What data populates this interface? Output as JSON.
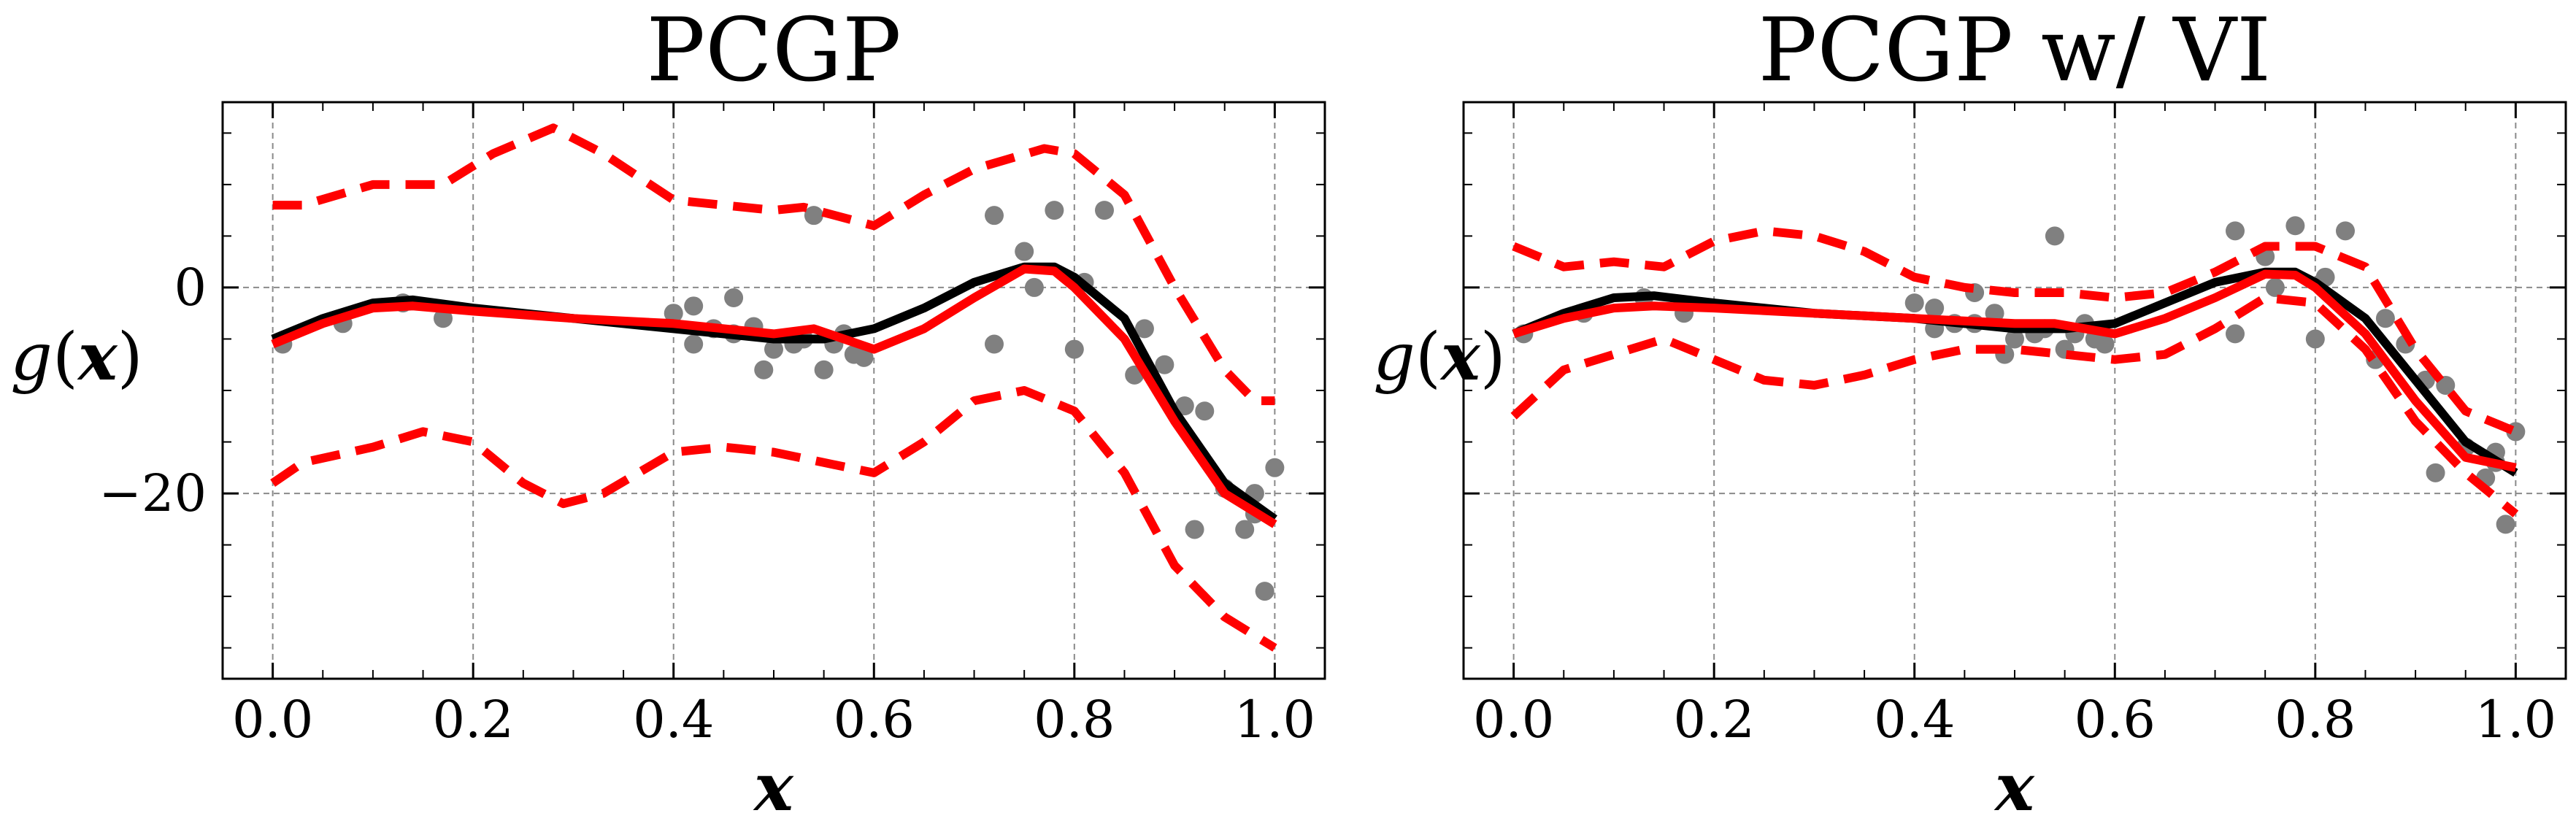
{
  "chart_data": [
    {
      "type": "line",
      "title": "PCGP",
      "xlabel": "x",
      "ylabel": "g(x)",
      "xlim": [
        -0.05,
        1.05
      ],
      "ylim": [
        -38,
        18
      ],
      "xticks": [
        0.0,
        0.2,
        0.4,
        0.6,
        0.8,
        1.0
      ],
      "xtick_labels": [
        "0.0",
        "0.2",
        "0.4",
        "0.6",
        "0.8",
        "1.0"
      ],
      "yticks": [
        0,
        -20
      ],
      "ytick_labels": [
        "0",
        "−20"
      ],
      "show_yticklabels": true,
      "grid": true,
      "series": [
        {
          "kind": "scatter",
          "color": "#808080",
          "x": [
            0.01,
            0.07,
            0.13,
            0.17,
            0.4,
            0.42,
            0.42,
            0.44,
            0.46,
            0.46,
            0.48,
            0.49,
            0.5,
            0.52,
            0.53,
            0.54,
            0.55,
            0.56,
            0.57,
            0.58,
            0.59,
            0.72,
            0.72,
            0.75,
            0.76,
            0.78,
            0.8,
            0.81,
            0.83,
            0.86,
            0.87,
            0.89,
            0.91,
            0.92,
            0.93,
            0.95,
            0.97,
            0.98,
            0.99,
            1.0,
            0.98
          ],
          "y": [
            -5.5,
            -3.5,
            -1.5,
            -3,
            -2.5,
            -1.8,
            -5.5,
            -4,
            -1,
            -4.5,
            -3.8,
            -8,
            -6,
            -5.5,
            -5,
            7,
            -8,
            -5.5,
            -4.5,
            -6.5,
            -6.8,
            7,
            -5.5,
            3.5,
            0,
            7.5,
            -6,
            0.5,
            7.5,
            -8.5,
            -4,
            -7.5,
            -11.5,
            -23.5,
            -12,
            -19.5,
            -23.5,
            -20,
            -29.5,
            -17.5,
            -22
          ]
        },
        {
          "kind": "line",
          "color": "#000000",
          "dash": "solid",
          "x": [
            0.0,
            0.05,
            0.1,
            0.14,
            0.2,
            0.3,
            0.4,
            0.5,
            0.55,
            0.6,
            0.65,
            0.7,
            0.75,
            0.78,
            0.8,
            0.85,
            0.9,
            0.95,
            1.0
          ],
          "y": [
            -5,
            -3,
            -1.5,
            -1.2,
            -2,
            -3,
            -4,
            -5,
            -5,
            -4,
            -2,
            0.5,
            2,
            2,
            1,
            -3,
            -12,
            -19,
            -22.5
          ]
        },
        {
          "kind": "line",
          "color": "#ff0000",
          "dash": "solid",
          "x": [
            0.0,
            0.05,
            0.1,
            0.14,
            0.2,
            0.3,
            0.4,
            0.5,
            0.54,
            0.6,
            0.65,
            0.7,
            0.75,
            0.78,
            0.8,
            0.85,
            0.9,
            0.95,
            1.0
          ],
          "y": [
            -5.5,
            -3.5,
            -2,
            -1.8,
            -2.3,
            -3,
            -3.5,
            -4.5,
            -4,
            -6,
            -4,
            -1,
            1.8,
            1.6,
            0,
            -5,
            -13,
            -20,
            -23
          ]
        },
        {
          "kind": "line",
          "color": "#ff0000",
          "dash": "dashed",
          "x": [
            0.0,
            0.03,
            0.1,
            0.17,
            0.22,
            0.28,
            0.33,
            0.4,
            0.45,
            0.5,
            0.53,
            0.6,
            0.65,
            0.7,
            0.77,
            0.8,
            0.85,
            0.9,
            0.95,
            0.98,
            1.0
          ],
          "y": [
            8,
            8,
            10,
            10,
            13,
            15.5,
            13,
            8.5,
            8,
            7.5,
            7.8,
            6,
            9,
            11.5,
            13.5,
            13,
            9,
            0,
            -8,
            -11,
            -11
          ]
        },
        {
          "kind": "line",
          "color": "#ff0000",
          "dash": "dashed",
          "x": [
            0.0,
            0.03,
            0.1,
            0.15,
            0.2,
            0.25,
            0.29,
            0.33,
            0.4,
            0.45,
            0.5,
            0.55,
            0.6,
            0.65,
            0.7,
            0.75,
            0.8,
            0.85,
            0.9,
            0.95,
            1.0
          ],
          "y": [
            -19,
            -17,
            -15.5,
            -14,
            -15,
            -19,
            -21,
            -20,
            -16,
            -15.5,
            -16,
            -17,
            -18,
            -15,
            -11,
            -10,
            -12,
            -18,
            -27,
            -32,
            -35
          ]
        }
      ]
    },
    {
      "type": "line",
      "title": "PCGP w/ VI",
      "xlabel": "x",
      "ylabel": "g(x)",
      "xlim": [
        -0.05,
        1.05
      ],
      "ylim": [
        -38,
        18
      ],
      "xticks": [
        0.0,
        0.2,
        0.4,
        0.6,
        0.8,
        1.0
      ],
      "xtick_labels": [
        "0.0",
        "0.2",
        "0.4",
        "0.6",
        "0.8",
        "1.0"
      ],
      "yticks": [
        0,
        -20
      ],
      "ytick_labels": [
        "",
        ""
      ],
      "show_yticklabels": false,
      "grid": true,
      "series": [
        {
          "kind": "scatter",
          "color": "#808080",
          "x": [
            0.01,
            0.07,
            0.13,
            0.17,
            0.4,
            0.42,
            0.42,
            0.44,
            0.46,
            0.46,
            0.48,
            0.49,
            0.5,
            0.52,
            0.53,
            0.54,
            0.55,
            0.56,
            0.57,
            0.58,
            0.59,
            0.72,
            0.72,
            0.75,
            0.76,
            0.78,
            0.8,
            0.81,
            0.83,
            0.86,
            0.87,
            0.89,
            0.91,
            0.92,
            0.93,
            0.95,
            0.97,
            0.98,
            0.99,
            1.0,
            0.98
          ],
          "y": [
            -4.5,
            -2.5,
            -1,
            -2.5,
            -1.5,
            -2,
            -4,
            -3.5,
            -0.5,
            -3.5,
            -2.5,
            -6.5,
            -5,
            -4.5,
            -4,
            5,
            -6,
            -4.5,
            -3.5,
            -5,
            -5.5,
            5.5,
            -4.5,
            3,
            0,
            6,
            -5,
            1,
            5.5,
            -7,
            -3,
            -5.5,
            -9,
            -18,
            -9.5,
            -15.5,
            -18.5,
            -17,
            -23,
            -14,
            -16
          ]
        },
        {
          "kind": "line",
          "color": "#000000",
          "dash": "solid",
          "x": [
            0.0,
            0.05,
            0.1,
            0.14,
            0.2,
            0.3,
            0.4,
            0.5,
            0.55,
            0.6,
            0.65,
            0.7,
            0.75,
            0.78,
            0.8,
            0.85,
            0.9,
            0.95,
            1.0
          ],
          "y": [
            -4.5,
            -2.5,
            -1,
            -0.8,
            -1.5,
            -2.5,
            -3,
            -4,
            -4,
            -3.5,
            -1.5,
            0.5,
            1.5,
            1.5,
            0.5,
            -3,
            -9,
            -15,
            -18
          ]
        },
        {
          "kind": "line",
          "color": "#ff0000",
          "dash": "solid",
          "x": [
            0.0,
            0.05,
            0.1,
            0.14,
            0.2,
            0.3,
            0.4,
            0.5,
            0.54,
            0.6,
            0.65,
            0.7,
            0.75,
            0.78,
            0.8,
            0.85,
            0.9,
            0.95,
            1.0
          ],
          "y": [
            -4.5,
            -3,
            -2,
            -1.8,
            -2,
            -2.5,
            -3,
            -3.5,
            -3.5,
            -4.5,
            -3,
            -1,
            1.3,
            1.2,
            0,
            -4.5,
            -11,
            -16.5,
            -17.5
          ]
        },
        {
          "kind": "line",
          "color": "#ff0000",
          "dash": "dashed",
          "x": [
            0.0,
            0.05,
            0.1,
            0.15,
            0.2,
            0.25,
            0.3,
            0.35,
            0.4,
            0.45,
            0.5,
            0.55,
            0.6,
            0.65,
            0.7,
            0.75,
            0.8,
            0.85,
            0.9,
            0.95,
            1.0
          ],
          "y": [
            4,
            2,
            2.5,
            2,
            4.5,
            5.5,
            5,
            3.5,
            1,
            0,
            -0.5,
            -0.5,
            -1,
            -0.5,
            1.5,
            4,
            4,
            2,
            -6,
            -12,
            -14
          ]
        },
        {
          "kind": "line",
          "color": "#ff0000",
          "dash": "dashed",
          "x": [
            0.0,
            0.05,
            0.1,
            0.15,
            0.2,
            0.25,
            0.3,
            0.35,
            0.4,
            0.45,
            0.5,
            0.55,
            0.6,
            0.65,
            0.7,
            0.75,
            0.8,
            0.85,
            0.9,
            0.95,
            1.0
          ],
          "y": [
            -12.5,
            -8,
            -6.5,
            -5,
            -7,
            -9,
            -9.5,
            -8.5,
            -7,
            -6,
            -6,
            -6.5,
            -7,
            -6.5,
            -4,
            -1,
            -1.5,
            -6,
            -13,
            -18,
            -22
          ]
        }
      ]
    }
  ]
}
